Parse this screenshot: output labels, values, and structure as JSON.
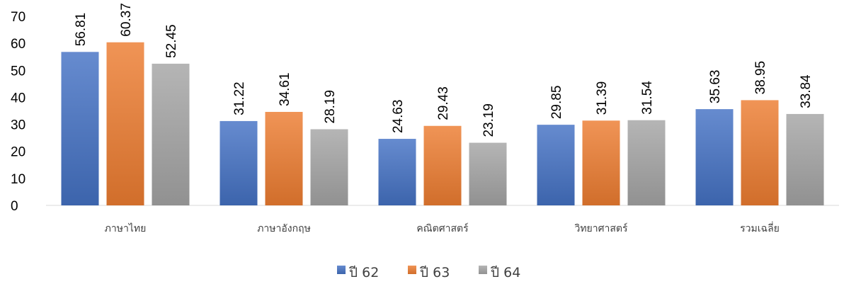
{
  "chart_data": {
    "type": "bar",
    "title": "",
    "xlabel": "",
    "ylabel": "",
    "ylim": [
      0,
      70
    ],
    "yticks": [
      0,
      10,
      20,
      30,
      40,
      50,
      60,
      70
    ],
    "grid": false,
    "legend_position": "bottom",
    "categories": [
      "ภาษาไทย",
      "ภาษาอังกฤษ",
      "คณิตศาสตร์",
      "วิทยาศาสตร์",
      "รวมเฉลี่ย"
    ],
    "series": [
      {
        "name": "ปี 62",
        "color": "#4472C4",
        "values": [
          56.81,
          31.22,
          24.63,
          29.85,
          35.63
        ]
      },
      {
        "name": "ปี 63",
        "color": "#ED7D31",
        "values": [
          60.37,
          34.61,
          29.43,
          31.39,
          38.95
        ]
      },
      {
        "name": "ปี 64",
        "color": "#A5A5A5",
        "values": [
          52.45,
          28.19,
          23.19,
          31.54,
          33.84
        ]
      }
    ]
  }
}
